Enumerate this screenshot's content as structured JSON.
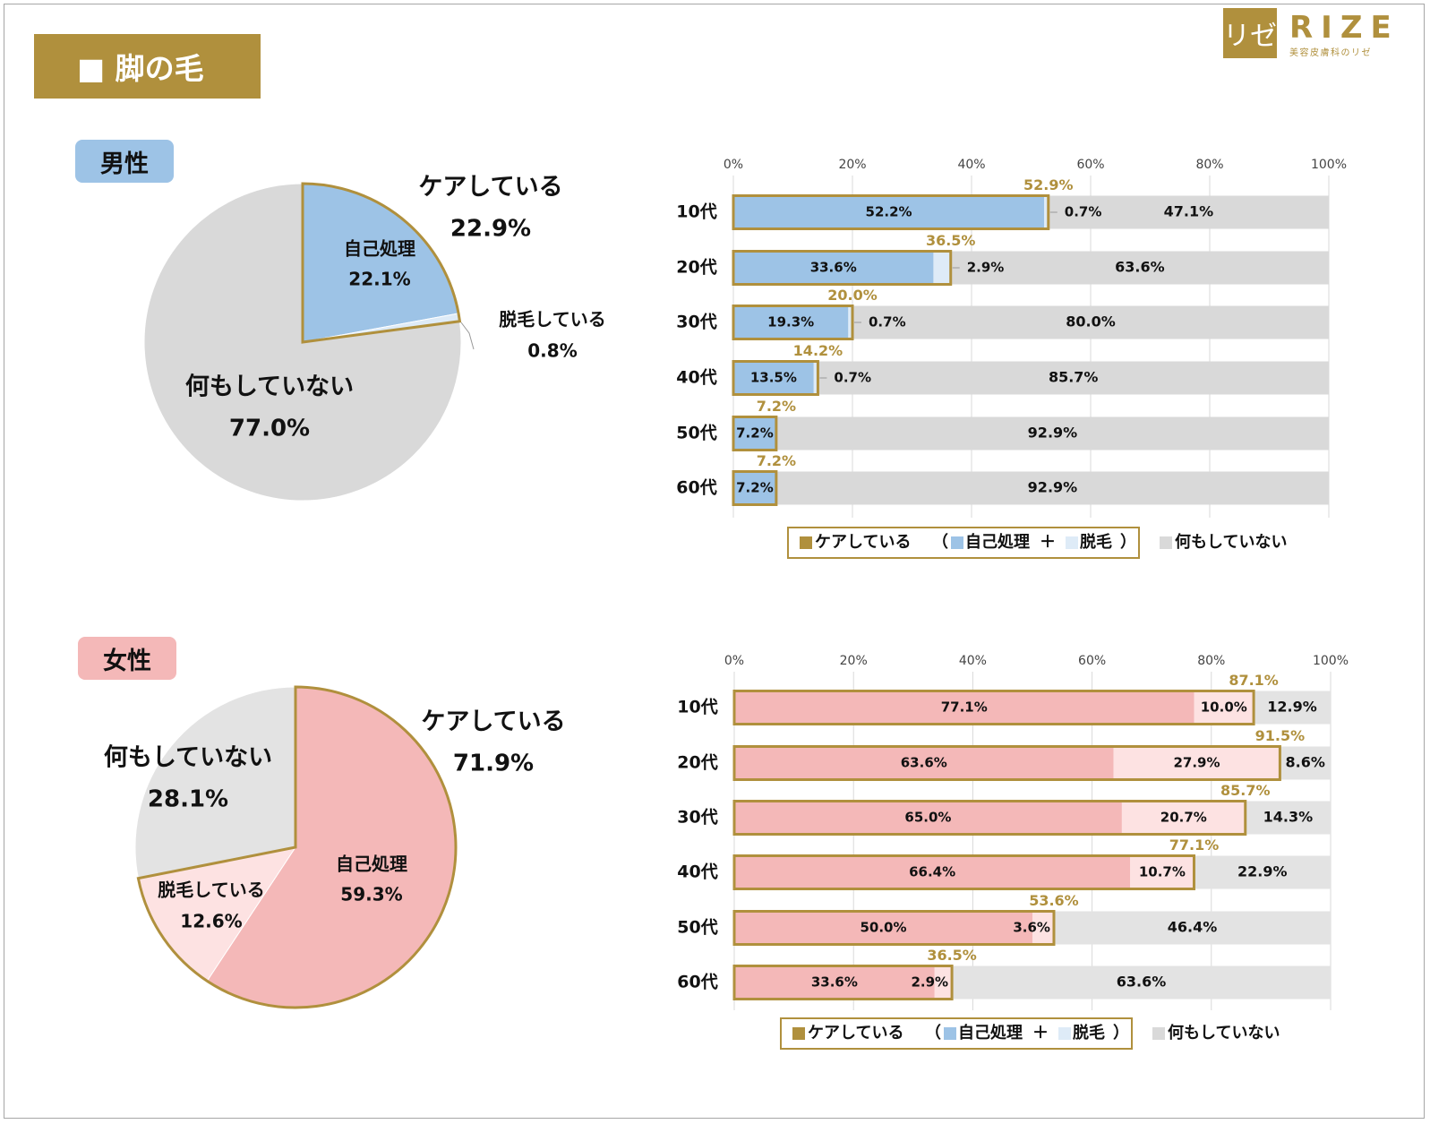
{
  "page_title": "■ 脚の毛",
  "logo": {
    "mark": "リゼ",
    "word": "RIZE",
    "subtitle": "美容皮膚科のリゼ"
  },
  "colors": {
    "care": "#b0903d",
    "male_self": "#9dc3e6",
    "male_hair": "#deebf7",
    "female_self": "#f4b8b8",
    "female_hair": "#fde2e2",
    "nothing": "#d9d9d9",
    "nothing_female": "#e3e3e3"
  },
  "chart_data": [
    {
      "id": "male-pie",
      "type": "pie",
      "group_label": "男性",
      "slices": [
        {
          "name": "自己処理",
          "value": 22.1,
          "label": "22.1%"
        },
        {
          "name": "脱毛している",
          "value": 0.8,
          "label": "0.8%"
        },
        {
          "name": "何もしていない",
          "value": 77.0,
          "label": "77.0%"
        }
      ],
      "care_label": "ケアしている",
      "care_value": 22.9,
      "care_text": "22.9%"
    },
    {
      "id": "male-bar",
      "type": "bar",
      "orientation": "horizontal-stacked",
      "categories": [
        "10代",
        "20代",
        "30代",
        "40代",
        "50代",
        "60代"
      ],
      "series": [
        {
          "name": "自己処理",
          "values": [
            52.2,
            33.6,
            19.3,
            13.5,
            7.2,
            7.2
          ],
          "labels": [
            "52.2%",
            "33.6%",
            "19.3%",
            "13.5%",
            "7.2%",
            "7.2%"
          ]
        },
        {
          "name": "脱毛",
          "values": [
            0.7,
            2.9,
            0.7,
            0.7,
            0,
            0
          ],
          "labels": [
            "0.7%",
            "2.9%",
            "0.7%",
            "0.7%",
            "",
            ""
          ]
        },
        {
          "name": "何もしていない",
          "values": [
            47.1,
            63.6,
            80.0,
            85.7,
            92.9,
            92.9
          ],
          "labels": [
            "47.1%",
            "63.6%",
            "80.0%",
            "85.7%",
            "92.9%",
            "92.9%"
          ]
        }
      ],
      "care_totals": [
        52.9,
        36.5,
        20.0,
        14.2,
        7.2,
        7.2
      ],
      "care_total_labels": [
        "52.9%",
        "36.5%",
        "20.0%",
        "14.2%",
        "7.2%",
        "7.2%"
      ],
      "xlim": [
        0,
        100
      ],
      "x_ticks": [
        "0%",
        "20%",
        "40%",
        "60%",
        "80%",
        "100%"
      ],
      "legend": {
        "care": "ケアしている",
        "open": "（",
        "self": "自己処理",
        "plus": "＋",
        "hair": "脱毛",
        "close": "）",
        "nothing": "何もしていない"
      }
    },
    {
      "id": "female-pie",
      "type": "pie",
      "group_label": "女性",
      "slices": [
        {
          "name": "自己処理",
          "value": 59.3,
          "label": "59.3%"
        },
        {
          "name": "脱毛している",
          "value": 12.6,
          "label": "12.6%"
        },
        {
          "name": "何もしていない",
          "value": 28.1,
          "label": "28.1%"
        }
      ],
      "care_label": "ケアしている",
      "care_value": 71.9,
      "care_text": "71.9%"
    },
    {
      "id": "female-bar",
      "type": "bar",
      "orientation": "horizontal-stacked",
      "categories": [
        "10代",
        "20代",
        "30代",
        "40代",
        "50代",
        "60代"
      ],
      "series": [
        {
          "name": "自己処理",
          "values": [
            77.1,
            63.6,
            65.0,
            66.4,
            50.0,
            33.6
          ],
          "labels": [
            "77.1%",
            "63.6%",
            "65.0%",
            "66.4%",
            "50.0%",
            "33.6%"
          ]
        },
        {
          "name": "脱毛",
          "values": [
            10.0,
            27.9,
            20.7,
            10.7,
            3.6,
            2.9
          ],
          "labels": [
            "10.0%",
            "27.9%",
            "20.7%",
            "10.7%",
            "3.6%",
            "2.9%"
          ]
        },
        {
          "name": "何もしていない",
          "values": [
            12.9,
            8.6,
            14.3,
            22.9,
            46.4,
            63.6
          ],
          "labels": [
            "12.9%",
            "8.6%",
            "14.3%",
            "22.9%",
            "46.4%",
            "63.6%"
          ]
        }
      ],
      "care_totals": [
        87.1,
        91.5,
        85.7,
        77.1,
        53.6,
        36.5
      ],
      "care_total_labels": [
        "87.1%",
        "91.5%",
        "85.7%",
        "77.1%",
        "53.6%",
        "36.5%"
      ],
      "xlim": [
        0,
        100
      ],
      "x_ticks": [
        "0%",
        "20%",
        "40%",
        "60%",
        "80%",
        "100%"
      ],
      "legend": {
        "care": "ケアしている",
        "open": "（",
        "self": "自己処理",
        "plus": "＋",
        "hair": "脱毛",
        "close": "）",
        "nothing": "何もしていない"
      }
    }
  ]
}
